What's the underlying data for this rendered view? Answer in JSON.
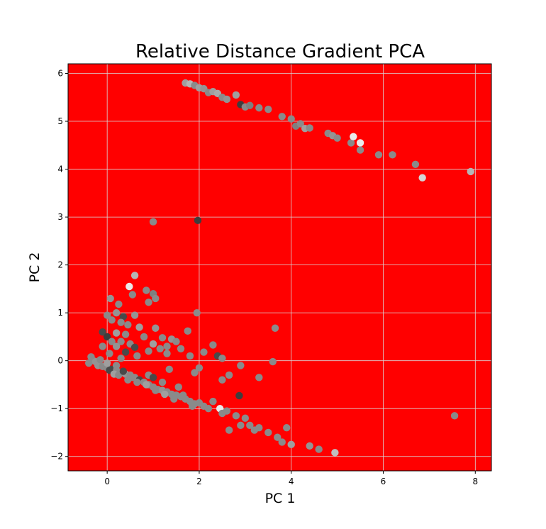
{
  "chart_data": {
    "type": "scatter",
    "title": "Relative Distance Gradient PCA",
    "xlabel": "PC 1",
    "ylabel": "PC 2",
    "xlim": [
      -0.85,
      8.35
    ],
    "ylim": [
      -2.3,
      6.2
    ],
    "xticks": [
      0,
      2,
      4,
      6,
      8
    ],
    "yticks": [
      -2,
      -1,
      0,
      1,
      2,
      3,
      4,
      5,
      6
    ],
    "grid": true,
    "legend": "none",
    "colors": {
      "background": "#ff0000",
      "grid": "#d8d8d8",
      "point_light": "#d4d4d4",
      "point_mid": "#7f7f7f",
      "point_dark": "#2e2e2e",
      "point_white": "#f4f4f4"
    },
    "points": [
      [
        1.7,
        5.8,
        0.6
      ],
      [
        1.8,
        5.78,
        0.7
      ],
      [
        1.9,
        5.75,
        0.5
      ],
      [
        2.0,
        5.7,
        0.6
      ],
      [
        2.1,
        5.68,
        0.55
      ],
      [
        2.2,
        5.6,
        0.5
      ],
      [
        2.3,
        5.62,
        0.6
      ],
      [
        2.4,
        5.58,
        0.65
      ],
      [
        2.5,
        5.5,
        0.5
      ],
      [
        2.6,
        5.46,
        0.55
      ],
      [
        2.8,
        5.55,
        0.6
      ],
      [
        2.9,
        5.35,
        0.15
      ],
      [
        3.0,
        5.3,
        0.5
      ],
      [
        3.1,
        5.33,
        0.45
      ],
      [
        3.3,
        5.28,
        0.5
      ],
      [
        3.5,
        5.25,
        0.5
      ],
      [
        3.8,
        5.1,
        0.5
      ],
      [
        4.0,
        5.05,
        0.5
      ],
      [
        4.1,
        4.9,
        0.45
      ],
      [
        4.2,
        4.95,
        0.5
      ],
      [
        4.3,
        4.85,
        0.6
      ],
      [
        4.4,
        4.86,
        0.5
      ],
      [
        4.8,
        4.75,
        0.5
      ],
      [
        4.9,
        4.7,
        0.55
      ],
      [
        5.0,
        4.65,
        0.5
      ],
      [
        5.3,
        4.55,
        0.5
      ],
      [
        5.35,
        4.68,
        0.95
      ],
      [
        5.5,
        4.55,
        0.95
      ],
      [
        5.5,
        4.4,
        0.5
      ],
      [
        5.9,
        4.3,
        0.5
      ],
      [
        6.2,
        4.3,
        0.5
      ],
      [
        6.7,
        4.1,
        0.5
      ],
      [
        6.85,
        3.82,
        0.85
      ],
      [
        7.9,
        3.95,
        0.7
      ],
      [
        1.0,
        2.9,
        0.5
      ],
      [
        1.97,
        2.93,
        0.15
      ],
      [
        0.6,
        1.78,
        0.7
      ],
      [
        0.48,
        1.55,
        0.95
      ],
      [
        0.55,
        1.38,
        0.5
      ],
      [
        0.85,
        1.47,
        0.5
      ],
      [
        1.0,
        1.4,
        0.45
      ],
      [
        1.05,
        1.3,
        0.5
      ],
      [
        0.9,
        1.22,
        0.5
      ],
      [
        0.25,
        1.18,
        0.5
      ],
      [
        0.07,
        1.3,
        0.55
      ],
      [
        0.0,
        0.95,
        0.5
      ],
      [
        0.2,
        1.0,
        0.55
      ],
      [
        0.35,
        0.92,
        0.2
      ],
      [
        0.6,
        0.95,
        0.55
      ],
      [
        1.95,
        1.0,
        0.5
      ],
      [
        0.1,
        0.85,
        0.5
      ],
      [
        0.3,
        0.8,
        0.5
      ],
      [
        0.45,
        0.75,
        0.5
      ],
      [
        0.7,
        0.7,
        0.6
      ],
      [
        1.05,
        0.68,
        0.55
      ],
      [
        1.75,
        0.62,
        0.5
      ],
      [
        3.65,
        0.68,
        0.5
      ],
      [
        -0.1,
        0.6,
        0.2
      ],
      [
        0.2,
        0.58,
        0.6
      ],
      [
        0.4,
        0.55,
        0.5
      ],
      [
        0.0,
        0.5,
        0.15
      ],
      [
        0.8,
        0.5,
        0.5
      ],
      [
        1.2,
        0.48,
        0.5
      ],
      [
        1.4,
        0.45,
        0.55
      ],
      [
        1.5,
        0.4,
        0.5
      ],
      [
        0.1,
        0.4,
        0.5
      ],
      [
        0.3,
        0.4,
        0.5
      ],
      [
        0.5,
        0.35,
        0.5
      ],
      [
        1.0,
        0.35,
        0.6
      ],
      [
        1.3,
        0.3,
        0.5
      ],
      [
        2.3,
        0.33,
        0.5
      ],
      [
        -0.1,
        0.3,
        0.5
      ],
      [
        0.2,
        0.3,
        0.55
      ],
      [
        0.6,
        0.28,
        0.2
      ],
      [
        1.15,
        0.25,
        0.5
      ],
      [
        1.6,
        0.25,
        0.5
      ],
      [
        0.4,
        0.18,
        0.2
      ],
      [
        0.9,
        0.2,
        0.5
      ],
      [
        1.3,
        0.15,
        0.5
      ],
      [
        2.1,
        0.18,
        0.5
      ],
      [
        0.05,
        0.15,
        0.5
      ],
      [
        2.4,
        0.1,
        0.2
      ],
      [
        0.65,
        0.1,
        0.5
      ],
      [
        1.8,
        0.1,
        0.5
      ],
      [
        2.5,
        0.05,
        0.5
      ],
      [
        3.6,
        -0.02,
        0.5
      ],
      [
        -0.35,
        0.08,
        0.5
      ],
      [
        -0.3,
        0.0,
        0.5
      ],
      [
        -0.4,
        -0.05,
        0.5
      ],
      [
        -0.2,
        -0.1,
        0.55
      ],
      [
        -0.1,
        -0.12,
        0.5
      ],
      [
        0.0,
        -0.15,
        0.5
      ],
      [
        0.1,
        -0.18,
        0.2
      ],
      [
        0.2,
        -0.2,
        0.5
      ],
      [
        0.3,
        -0.25,
        0.5
      ],
      [
        0.4,
        -0.28,
        0.55
      ],
      [
        0.5,
        -0.3,
        0.5
      ],
      [
        0.6,
        -0.35,
        0.5
      ],
      [
        0.7,
        -0.4,
        0.2
      ],
      [
        0.8,
        -0.45,
        0.5
      ],
      [
        0.9,
        -0.5,
        0.5
      ],
      [
        1.0,
        -0.55,
        0.5
      ],
      [
        1.1,
        -0.6,
        0.5
      ],
      [
        1.2,
        -0.62,
        0.55
      ],
      [
        1.3,
        -0.65,
        0.5
      ],
      [
        1.4,
        -0.7,
        0.5
      ],
      [
        1.5,
        -0.72,
        0.5
      ],
      [
        1.6,
        -0.75,
        0.5
      ],
      [
        1.7,
        -0.8,
        0.5
      ],
      [
        1.8,
        -0.85,
        0.5
      ],
      [
        1.9,
        -0.9,
        0.5
      ],
      [
        2.0,
        -0.88,
        0.5
      ],
      [
        2.1,
        -0.95,
        0.5
      ],
      [
        2.2,
        -1.0,
        0.5
      ],
      [
        2.45,
        -1.0,
        0.95
      ],
      [
        2.5,
        -1.1,
        0.5
      ],
      [
        2.6,
        -1.05,
        0.5
      ],
      [
        2.8,
        -1.15,
        0.5
      ],
      [
        3.0,
        -1.2,
        0.5
      ],
      [
        3.1,
        -1.35,
        0.5
      ],
      [
        3.3,
        -1.4,
        0.5
      ],
      [
        3.5,
        -1.5,
        0.5
      ],
      [
        3.7,
        -1.6,
        0.5
      ],
      [
        3.8,
        -1.7,
        0.5
      ],
      [
        4.0,
        -1.75,
        0.6
      ],
      [
        4.4,
        -1.78,
        0.55
      ],
      [
        4.6,
        -1.85,
        0.5
      ],
      [
        4.95,
        -1.92,
        0.75
      ],
      [
        2.65,
        -1.45,
        0.5
      ],
      [
        2.9,
        -1.35,
        0.5
      ],
      [
        3.2,
        -1.45,
        0.5
      ],
      [
        3.9,
        -1.4,
        0.5
      ],
      [
        2.87,
        -0.73,
        0.15
      ],
      [
        2.9,
        -0.1,
        0.5
      ],
      [
        3.3,
        -0.35,
        0.5
      ],
      [
        2.65,
        -0.3,
        0.5
      ],
      [
        2.5,
        -0.4,
        0.5
      ],
      [
        2.0,
        -0.15,
        0.5
      ],
      [
        1.9,
        -0.25,
        0.5
      ],
      [
        1.35,
        -0.18,
        0.5
      ],
      [
        0.05,
        -0.2,
        0.2
      ],
      [
        0.15,
        -0.28,
        0.6
      ],
      [
        0.25,
        -0.3,
        0.5
      ],
      [
        0.35,
        -0.22,
        0.2
      ],
      [
        0.45,
        -0.4,
        0.5
      ],
      [
        0.55,
        -0.35,
        0.5
      ],
      [
        0.65,
        -0.45,
        0.5
      ],
      [
        0.85,
        -0.5,
        0.6
      ],
      [
        1.05,
        -0.62,
        0.5
      ],
      [
        1.25,
        -0.7,
        0.6
      ],
      [
        1.45,
        -0.8,
        0.5
      ],
      [
        1.65,
        -0.72,
        0.5
      ],
      [
        1.85,
        -0.95,
        0.5
      ],
      [
        2.3,
        -0.85,
        0.5
      ],
      [
        7.55,
        -1.15,
        0.5
      ],
      [
        -0.25,
        -0.02,
        0.55
      ],
      [
        -0.15,
        0.02,
        0.5
      ],
      [
        0.0,
        -0.05,
        0.6
      ],
      [
        0.3,
        0.05,
        0.5
      ],
      [
        0.2,
        -0.1,
        0.5
      ],
      [
        0.9,
        -0.3,
        0.5
      ],
      [
        1.0,
        -0.35,
        0.2
      ],
      [
        1.2,
        -0.45,
        0.5
      ],
      [
        1.55,
        -0.55,
        0.5
      ]
    ]
  }
}
